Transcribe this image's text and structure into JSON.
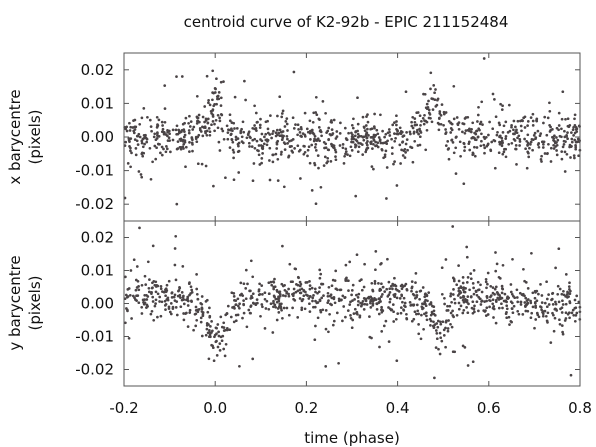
{
  "title": "centroid curve of K2-92b - EPIC 211152484",
  "xlabel": "time (phase)",
  "panels": [
    {
      "ylabel_line1": "x barycentre",
      "ylabel_line2": "(pixels)"
    },
    {
      "ylabel_line1": "y barycentre",
      "ylabel_line2": "(pixels)"
    }
  ],
  "xticks": [
    "-0.2",
    "0.0",
    "0.2",
    "0.4",
    "0.6",
    "0.8"
  ],
  "yticks": [
    "-0.02",
    "-0.01",
    "0.00",
    "0.01",
    "0.02"
  ],
  "colors": {
    "points": "#4a4446",
    "axes": "#555555"
  },
  "chart_data": [
    {
      "type": "scatter",
      "ylabel": "x barycentre (pixels)",
      "xlim": [
        -0.2,
        0.8
      ],
      "ylim": [
        -0.025,
        0.025
      ],
      "grid": false,
      "series": [
        {
          "x": [
            -0.2,
            -0.19,
            -0.18,
            -0.17,
            -0.16,
            -0.15,
            -0.14,
            -0.13,
            -0.12,
            -0.11,
            -0.1,
            -0.09,
            -0.08,
            -0.07,
            -0.06,
            -0.05,
            -0.04,
            -0.03,
            -0.02,
            -0.01,
            0.0,
            0.01,
            0.02,
            0.03,
            0.04,
            0.05,
            0.06,
            0.07,
            0.08,
            0.09,
            0.1,
            0.11,
            0.12,
            0.13,
            0.14,
            0.15,
            0.16,
            0.17,
            0.18,
            0.19,
            0.2,
            0.21,
            0.22,
            0.23,
            0.24,
            0.25,
            0.26,
            0.27,
            0.28,
            0.29,
            0.3,
            0.31,
            0.32,
            0.33,
            0.34,
            0.35,
            0.36,
            0.37,
            0.38,
            0.39,
            0.4,
            0.41,
            0.42,
            0.43,
            0.44,
            0.45,
            0.46,
            0.47,
            0.48,
            0.49,
            0.5,
            0.51,
            0.52,
            0.53,
            0.54,
            0.55,
            0.56,
            0.57,
            0.58,
            0.59,
            0.6,
            0.61,
            0.62,
            0.63,
            0.64,
            0.65,
            0.66,
            0.67,
            0.68,
            0.69,
            0.7,
            0.71,
            0.72,
            0.73,
            0.74,
            0.75,
            0.76,
            0.77,
            0.78,
            0.79,
            0.8
          ],
          "y": [
            0.001,
            -0.001,
            0.002,
            0.0,
            -0.002,
            0.001,
            0.002,
            -0.001,
            0.0,
            0.001,
            -0.002,
            0.0,
            0.001,
            -0.001,
            0.002,
            0.0,
            0.001,
            0.003,
            0.004,
            0.006,
            0.01,
            0.008,
            0.004,
            0.002,
            0.001,
            0.0,
            0.001,
            -0.001,
            0.0,
            0.002,
            -0.001,
            0.0,
            0.001,
            -0.002,
            0.0,
            0.001,
            -0.001,
            0.0,
            -0.001,
            0.001,
            -0.002,
            0.0,
            -0.001,
            0.001,
            -0.002,
            0.0,
            -0.001,
            0.001,
            0.0,
            -0.002,
            -0.001,
            0.0,
            -0.001,
            0.001,
            -0.002,
            0.0,
            -0.001,
            -0.002,
            0.0,
            0.001,
            -0.001,
            0.0,
            0.001,
            0.002,
            0.003,
            0.004,
            0.006,
            0.008,
            0.01,
            0.007,
            0.004,
            0.002,
            0.001,
            0.0,
            -0.001,
            0.001,
            0.0,
            -0.001,
            0.002,
            0.0,
            -0.001,
            0.001,
            0.0,
            -0.002,
            0.001,
            0.0,
            -0.001,
            0.001,
            0.0,
            -0.002,
            0.001,
            0.0,
            -0.001,
            0.002,
            0.0,
            -0.001,
            0.001,
            0.0,
            -0.002,
            0.001,
            0.0
          ]
        }
      ]
    },
    {
      "type": "scatter",
      "ylabel": "y barycentre (pixels)",
      "xlabel": "time (phase)",
      "xlim": [
        -0.2,
        0.8
      ],
      "ylim": [
        -0.025,
        0.025
      ],
      "grid": false,
      "series": [
        {
          "x": [
            -0.2,
            -0.19,
            -0.18,
            -0.17,
            -0.16,
            -0.15,
            -0.14,
            -0.13,
            -0.12,
            -0.11,
            -0.1,
            -0.09,
            -0.08,
            -0.07,
            -0.06,
            -0.05,
            -0.04,
            -0.03,
            -0.02,
            -0.01,
            0.0,
            0.01,
            0.02,
            0.03,
            0.04,
            0.05,
            0.06,
            0.07,
            0.08,
            0.09,
            0.1,
            0.11,
            0.12,
            0.13,
            0.14,
            0.15,
            0.16,
            0.17,
            0.18,
            0.19,
            0.2,
            0.21,
            0.22,
            0.23,
            0.24,
            0.25,
            0.26,
            0.27,
            0.28,
            0.29,
            0.3,
            0.31,
            0.32,
            0.33,
            0.34,
            0.35,
            0.36,
            0.37,
            0.38,
            0.39,
            0.4,
            0.41,
            0.42,
            0.43,
            0.44,
            0.45,
            0.46,
            0.47,
            0.48,
            0.49,
            0.5,
            0.51,
            0.52,
            0.53,
            0.54,
            0.55,
            0.56,
            0.57,
            0.58,
            0.59,
            0.6,
            0.61,
            0.62,
            0.63,
            0.64,
            0.65,
            0.66,
            0.67,
            0.68,
            0.69,
            0.7,
            0.71,
            0.72,
            0.73,
            0.74,
            0.75,
            0.76,
            0.77,
            0.78,
            0.79,
            0.8
          ],
          "y": [
            0.0,
            0.002,
            0.003,
            0.002,
            0.001,
            0.002,
            0.001,
            0.002,
            0.001,
            0.002,
            0.002,
            0.001,
            0.002,
            0.001,
            0.0,
            0.001,
            0.0,
            -0.002,
            -0.004,
            -0.008,
            -0.011,
            -0.01,
            -0.006,
            -0.002,
            0.0,
            0.001,
            0.001,
            0.002,
            0.002,
            0.002,
            0.002,
            0.003,
            0.002,
            0.003,
            0.002,
            0.003,
            0.002,
            0.002,
            0.003,
            0.002,
            0.002,
            0.001,
            0.002,
            0.002,
            0.001,
            0.002,
            0.001,
            0.002,
            0.001,
            0.001,
            0.002,
            0.001,
            0.002,
            0.001,
            0.001,
            0.002,
            0.001,
            0.001,
            0.002,
            0.001,
            0.001,
            0.002,
            0.001,
            0.001,
            0.0,
            0.0,
            -0.001,
            -0.002,
            -0.005,
            -0.008,
            -0.007,
            -0.003,
            0.0,
            0.002,
            0.003,
            0.002,
            0.003,
            0.002,
            0.002,
            0.001,
            0.002,
            0.001,
            0.001,
            0.002,
            0.001,
            0.0,
            0.001,
            0.0,
            0.001,
            0.0,
            -0.001,
            0.0,
            0.001,
            0.0,
            -0.001,
            0.0,
            0.0,
            -0.001,
            0.0,
            0.0,
            -0.001
          ]
        }
      ]
    }
  ]
}
